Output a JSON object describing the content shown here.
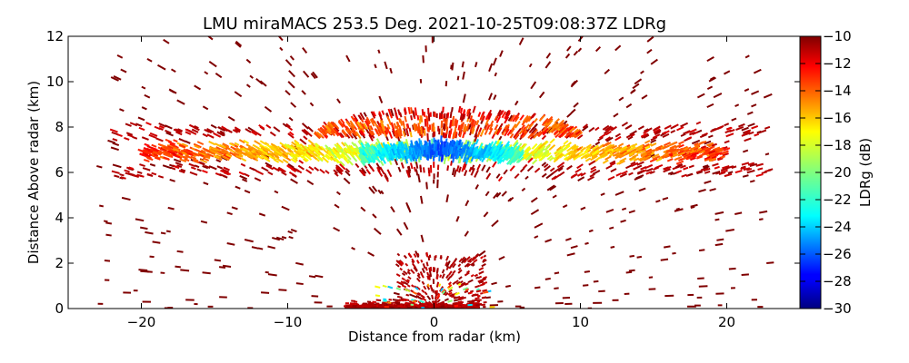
{
  "chart_data": {
    "type": "scatter",
    "title": "LMU miraMACS 253.5 Deg. 2021-10-25T09:08:37Z  LDRg",
    "xlabel": "Distance from radar (km)",
    "ylabel": "Distance Above radar  (km)",
    "xlim": [
      -25,
      25
    ],
    "ylim": [
      0,
      12
    ],
    "xticks": [
      -20,
      -10,
      0,
      10,
      20
    ],
    "yticks": [
      0,
      2,
      4,
      6,
      8,
      10,
      12
    ],
    "colorbar": {
      "label": "LDRg (dB)",
      "range": [
        -30,
        -10
      ],
      "ticks": [
        -10,
        -12,
        -14,
        -16,
        -18,
        -20,
        -22,
        -24,
        -26,
        -28,
        -30
      ],
      "tick_labels": [
        "−10",
        "−12",
        "−14",
        "−16",
        "−18",
        "−20",
        "−22",
        "−24",
        "−26",
        "−28",
        "−30"
      ],
      "colormap": "jet"
    },
    "regions": [
      {
        "name": "cloud-layer-core",
        "x_range": [
          -5,
          6
        ],
        "height_km": [
          6.3,
          7.8
        ],
        "ldr_dB": -26
      },
      {
        "name": "cloud-layer-mid",
        "x_range": [
          -20,
          20
        ],
        "height_km": [
          6.2,
          7.6
        ],
        "ldr_dB": -20
      },
      {
        "name": "cloud-layer-top",
        "x_range": [
          -8,
          10
        ],
        "height_km": [
          7.8,
          9.0
        ],
        "ldr_dB": -14
      },
      {
        "name": "near-ground-clutter",
        "x_range": [
          -3,
          3
        ],
        "height_km": [
          0,
          1.2
        ],
        "ldr_dB": -11
      },
      {
        "name": "sparse-noise",
        "x_range": [
          -23,
          23
        ],
        "height_km": [
          0,
          12
        ],
        "ldr_dB": -10
      }
    ]
  },
  "colors": {
    "axis": "#000000",
    "background": "#ffffff"
  }
}
